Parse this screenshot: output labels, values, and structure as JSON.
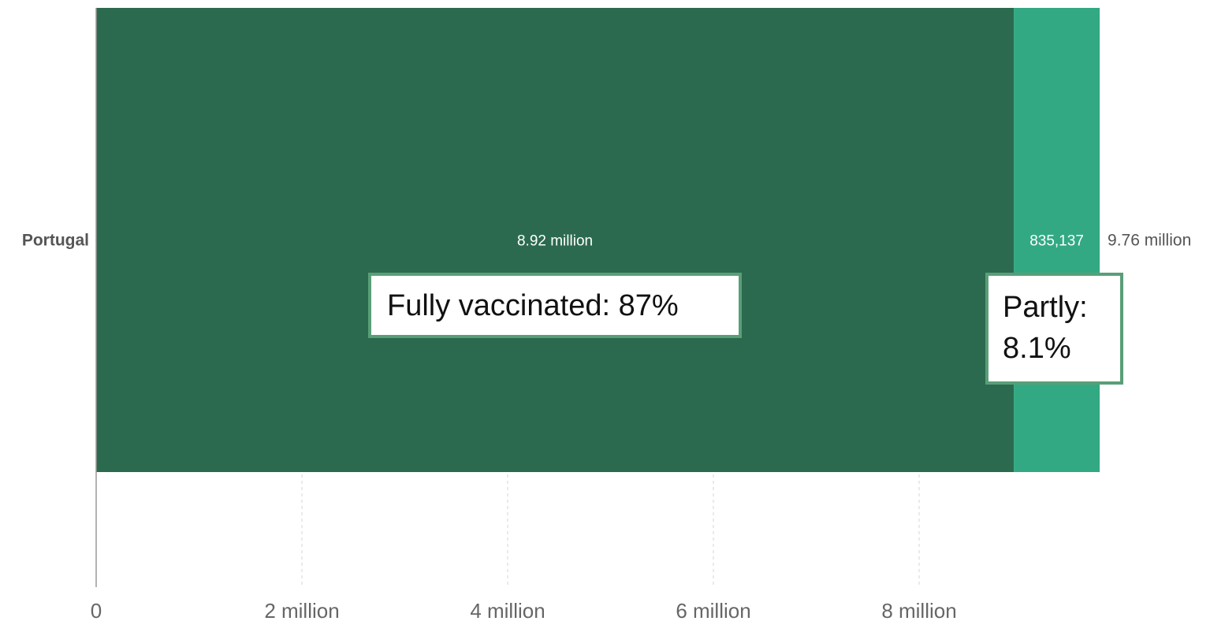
{
  "chart_data": {
    "type": "bar",
    "orientation": "horizontal",
    "stacked": true,
    "categories": [
      "Portugal"
    ],
    "series": [
      {
        "values": [
          8920000
        ],
        "color": "#2b6a4f",
        "value_label": "8.92 million"
      },
      {
        "values": [
          835137
        ],
        "color": "#32a983",
        "value_label": "835,137"
      }
    ],
    "totals": [
      {
        "value": 9760000,
        "label": "9.76 million"
      }
    ],
    "x_ticks": [
      {
        "value": 0,
        "label": "0"
      },
      {
        "value": 2000000,
        "label": "2 million"
      },
      {
        "value": 4000000,
        "label": "4 million"
      },
      {
        "value": 6000000,
        "label": "6 million"
      },
      {
        "value": 8000000,
        "label": "8 million"
      }
    ],
    "xlim": [
      0,
      10000000
    ],
    "grid": "vertical dashed",
    "annotations": [
      {
        "text": "Fully vaccinated: 87%"
      },
      {
        "text": "Partly: 8.1%"
      }
    ]
  }
}
